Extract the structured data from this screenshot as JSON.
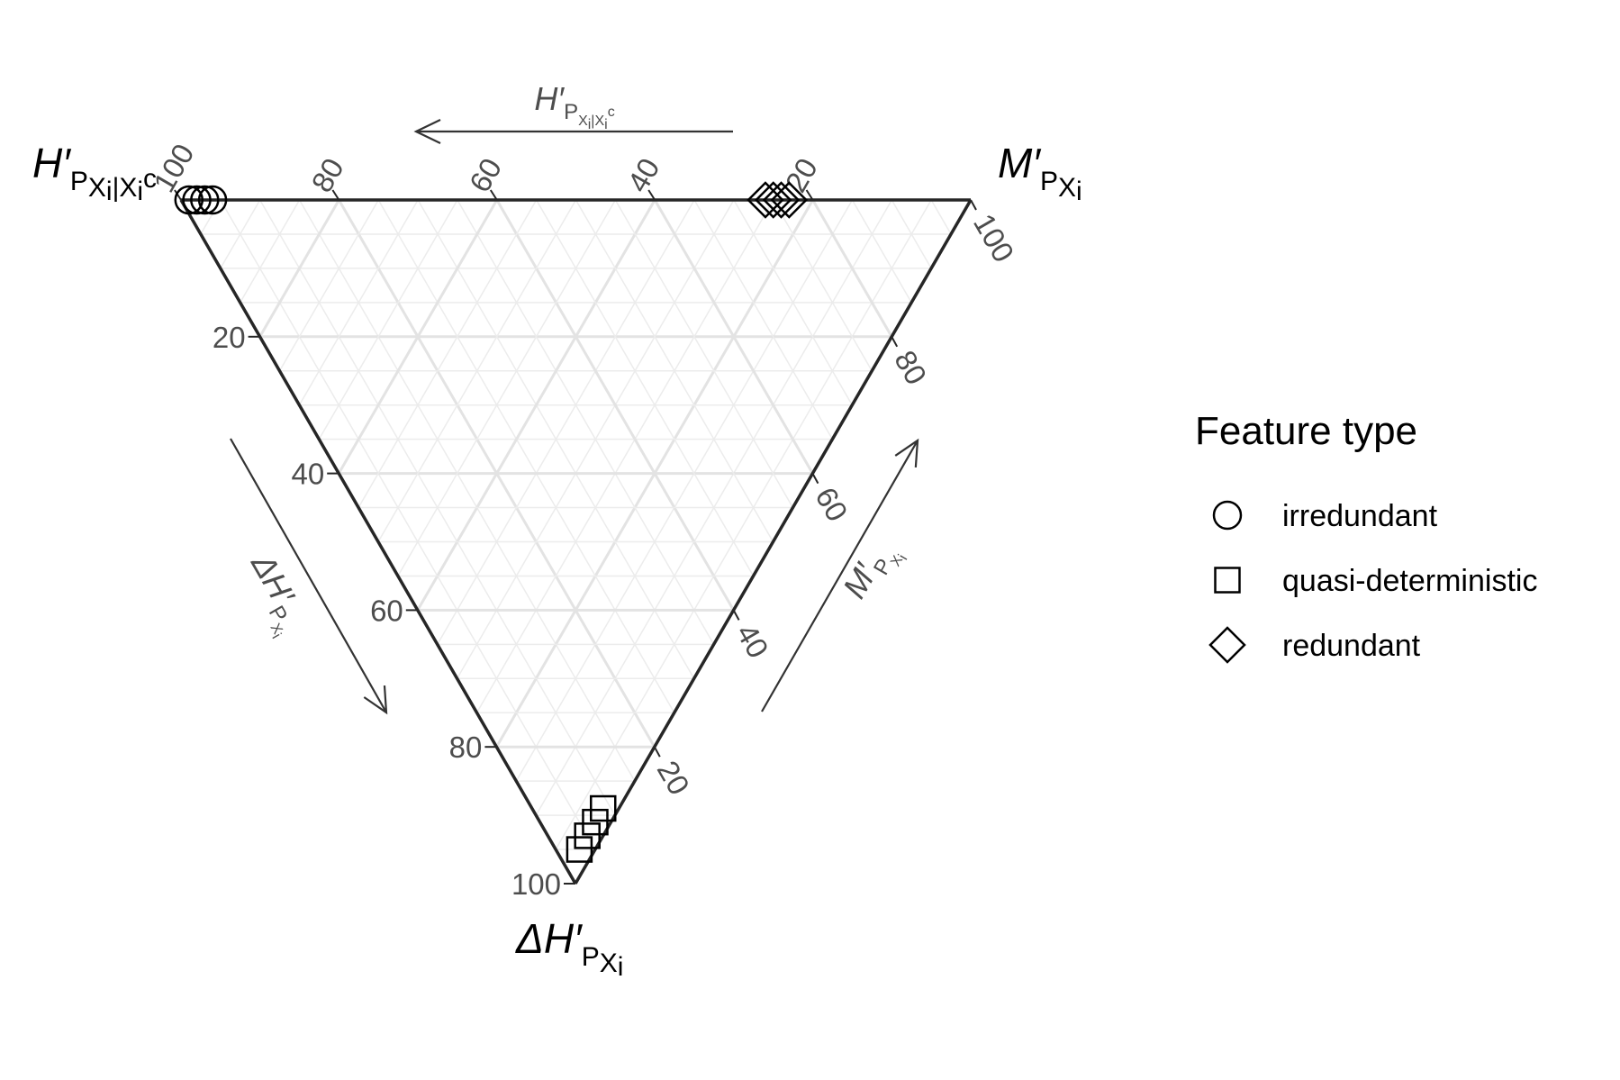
{
  "chart_data": {
    "type": "scatter",
    "subtype": "ternary",
    "axes": {
      "top_left": {
        "label": "H′",
        "sub": "PXi|Xic",
        "arrow_label": "H′",
        "arrow_sub": "PXi|Xic"
      },
      "top_right": {
        "label": "M′",
        "sub": "PXi",
        "arrow_label": "M′",
        "arrow_sub": "PXi"
      },
      "bottom": {
        "label": "ΔH′",
        "sub": "PXi",
        "arrow_label": "ΔH′",
        "arrow_sub": "PXi"
      }
    },
    "ticks": [
      "20",
      "40",
      "60",
      "80",
      "100"
    ],
    "grid": true,
    "legend": {
      "title": "Feature type",
      "position": "right",
      "entries": [
        {
          "label": "irredundant",
          "shape": "circle"
        },
        {
          "label": "quasi-deterministic",
          "shape": "square"
        },
        {
          "label": "redundant",
          "shape": "diamond"
        }
      ]
    },
    "series": [
      {
        "name": "irredundant",
        "shape": "circle",
        "points": [
          {
            "H": 99,
            "M": 1,
            "dH": 0
          },
          {
            "H": 98,
            "M": 2,
            "dH": 0
          },
          {
            "H": 97,
            "M": 3,
            "dH": 0
          },
          {
            "H": 96,
            "M": 4,
            "dH": 0
          }
        ]
      },
      {
        "name": "quasi-deterministic",
        "shape": "square",
        "points": [
          {
            "H": 2,
            "M": 9,
            "dH": 89
          },
          {
            "H": 2,
            "M": 7,
            "dH": 91
          },
          {
            "H": 2,
            "M": 5,
            "dH": 93
          },
          {
            "H": 2,
            "M": 3,
            "dH": 95
          }
        ]
      },
      {
        "name": "redundant",
        "shape": "diamond",
        "points": [
          {
            "H": 26,
            "M": 74,
            "dH": 0
          },
          {
            "H": 25,
            "M": 75,
            "dH": 0
          },
          {
            "H": 24,
            "M": 76,
            "dH": 0
          },
          {
            "H": 23,
            "M": 77,
            "dH": 0
          }
        ]
      }
    ],
    "colors": {
      "frame": "#262626",
      "grid_major": "#e3e3e3",
      "grid_minor": "#ececec",
      "tick_text": "#4d4d4d",
      "points": "#000000"
    }
  }
}
